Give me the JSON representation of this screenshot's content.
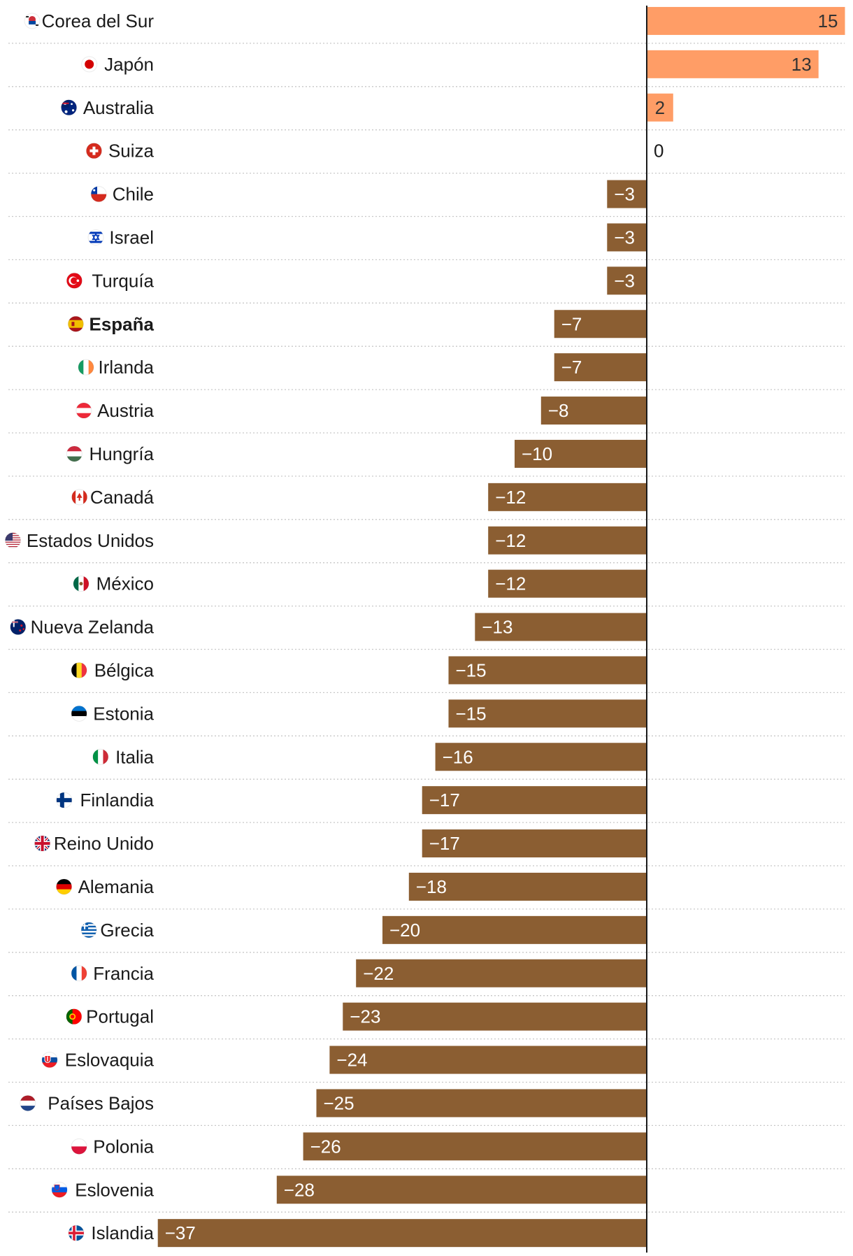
{
  "chart_data": {
    "type": "bar",
    "orientation": "horizontal",
    "title": "",
    "xlabel": "",
    "ylabel": "",
    "xlim": [
      -37,
      15
    ],
    "grid": true,
    "colors": {
      "positive": "#ff9d66",
      "negative": "#8b5e32",
      "positive_text": "#333333",
      "negative_text": "#ffffff",
      "zero_text": "#1a1a1a"
    },
    "categories": [
      "Corea del Sur",
      "Japón",
      "Australia",
      "Suiza",
      "Chile",
      "Israel",
      "Turquía",
      "España",
      "Irlanda",
      "Austria",
      "Hungría",
      "Canadá",
      "Estados Unidos",
      "México",
      "Nueva Zelanda",
      "Bélgica",
      "Estonia",
      "Italia",
      "Finlandia",
      "Reino Unido",
      "Alemania",
      "Grecia",
      "Francia",
      "Portugal",
      "Eslovaquia",
      "Países Bajos",
      "Polonia",
      "Eslovenia",
      "Islandia"
    ],
    "values": [
      15,
      13,
      2,
      0,
      -3,
      -3,
      -3,
      -7,
      -7,
      -8,
      -10,
      -12,
      -12,
      -12,
      -13,
      -15,
      -15,
      -16,
      -17,
      -17,
      -18,
      -20,
      -22,
      -23,
      -24,
      -25,
      -26,
      -28,
      -37
    ],
    "value_labels": [
      "15",
      "13",
      "2",
      "0",
      "−3",
      "−3",
      "−3",
      "−7",
      "−7",
      "−8",
      "−10",
      "−12",
      "−12",
      "−12",
      "−13",
      "−15",
      "−15",
      "−16",
      "−17",
      "−17",
      "−18",
      "−20",
      "−22",
      "−23",
      "−24",
      "−25",
      "−26",
      "−28",
      "−37"
    ],
    "highlighted_category": "España",
    "flag_icons": [
      "kr-flag-icon",
      "jp-flag-icon",
      "au-flag-icon",
      "ch-flag-icon",
      "cl-flag-icon",
      "il-flag-icon",
      "tr-flag-icon",
      "es-flag-icon",
      "ie-flag-icon",
      "at-flag-icon",
      "hu-flag-icon",
      "ca-flag-icon",
      "us-flag-icon",
      "mx-flag-icon",
      "nz-flag-icon",
      "be-flag-icon",
      "ee-flag-icon",
      "it-flag-icon",
      "fi-flag-icon",
      "gb-flag-icon",
      "de-flag-icon",
      "gr-flag-icon",
      "fr-flag-icon",
      "pt-flag-icon",
      "sk-flag-icon",
      "nl-flag-icon",
      "pl-flag-icon",
      "si-flag-icon",
      "is-flag-icon"
    ]
  }
}
